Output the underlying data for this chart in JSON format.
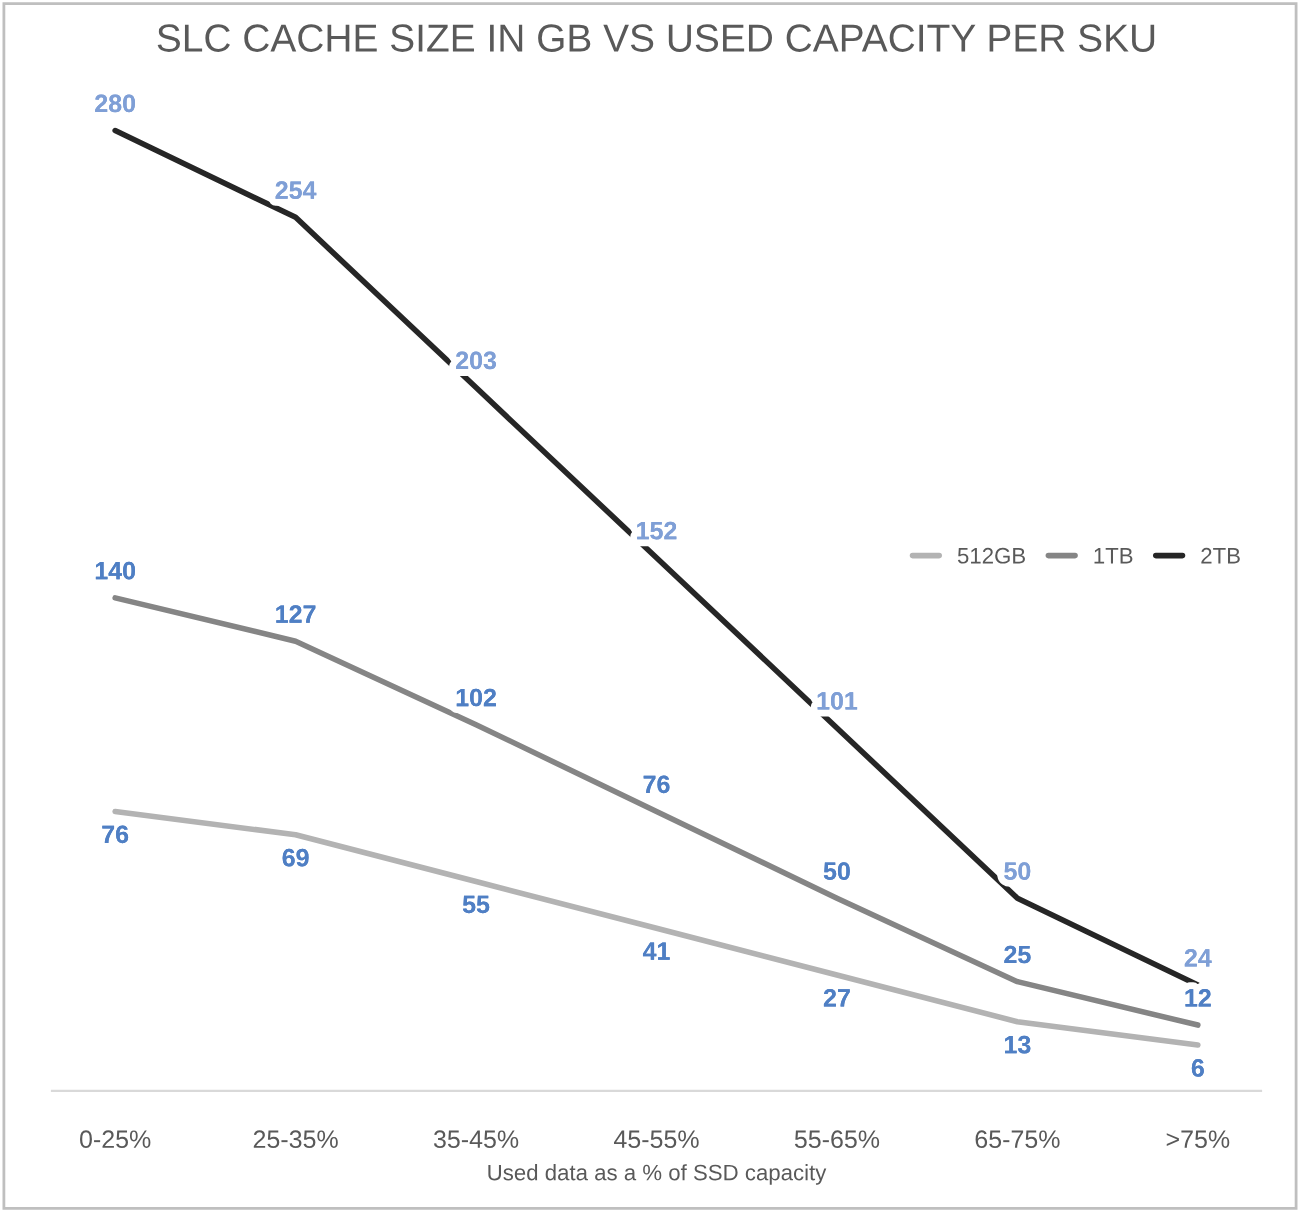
{
  "chart_data": {
    "type": "line",
    "title": "SLC CACHE SIZE IN GB VS USED CAPACITY PER SKU",
    "xlabel": "Used data as a % of SSD capacity",
    "categories": [
      "0-25%",
      "25-35%",
      "35-45%",
      "45-55%",
      "55-65%",
      "65-75%",
      ">75%"
    ],
    "series": [
      {
        "name": "512GB",
        "color": "#b3b3b3",
        "values": [
          76,
          69,
          55,
          41,
          27,
          13,
          6
        ]
      },
      {
        "name": "1TB",
        "color": "#858585",
        "values": [
          140,
          127,
          102,
          76,
          50,
          25,
          12
        ]
      },
      {
        "name": "2TB",
        "color": "#262626",
        "values": [
          280,
          254,
          203,
          152,
          101,
          50,
          24
        ]
      }
    ],
    "data_labels": true,
    "grid": false,
    "legend": "right",
    "line_style": "solid"
  }
}
